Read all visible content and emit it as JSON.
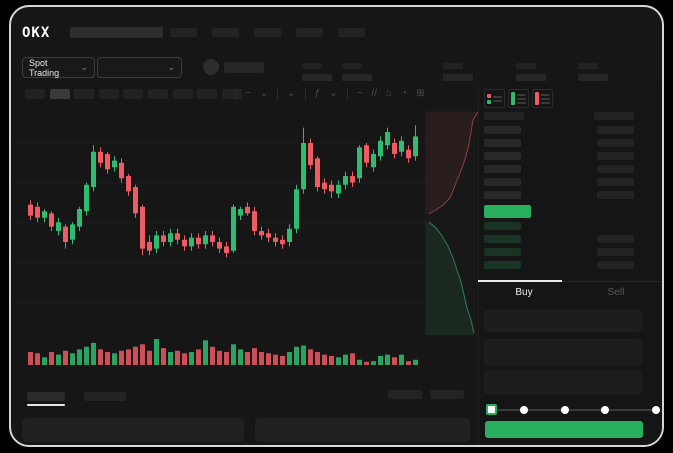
{
  "colors": {
    "green": "#2EBD70",
    "red": "#EF5B62",
    "accent_green": "#27AE5E",
    "buy_depth_tint": "rgba(46,189,112,0.18)",
    "grid": "#1c1c1c"
  },
  "header": {
    "logo": "OKX",
    "nav_placeholder_count": 5
  },
  "icons": {
    "chevron_down": "⌄"
  },
  "market_bar": {
    "market_selector_label": "Spot Trading",
    "stat_block_count": 5
  },
  "toolbar": {
    "timeframe_count": 9,
    "active_timeframe_index": 1,
    "tools": [
      {
        "type": "sep"
      },
      {
        "type": "icon",
        "name": "candle-style-icon",
        "glyph": "~"
      },
      {
        "type": "icon",
        "name": "chevron-down-icon",
        "glyph": "⌄"
      },
      {
        "type": "sep"
      },
      {
        "type": "icon",
        "name": "interval-menu-icon",
        "glyph": "⌄"
      },
      {
        "type": "sep"
      },
      {
        "type": "icon",
        "name": "indicators-icon",
        "glyph": "ƒ"
      },
      {
        "type": "icon",
        "name": "chevron-down-icon",
        "glyph": "⌄"
      },
      {
        "type": "sep"
      },
      {
        "type": "icon",
        "name": "line-tool-icon",
        "glyph": "~"
      },
      {
        "type": "icon",
        "name": "draw-tool-icon",
        "glyph": "//"
      },
      {
        "type": "icon",
        "name": "snapshot-icon",
        "glyph": "⌂"
      },
      {
        "type": "icon",
        "name": "history-icon",
        "glyph": "◔"
      },
      {
        "type": "icon",
        "name": "fullscreen-icon",
        "glyph": "⊞"
      }
    ]
  },
  "order_book": {
    "view_modes": [
      "combined-book",
      "bids-only",
      "asks-only"
    ],
    "sell_level_count": 6,
    "buy_level_count": 4,
    "buy_rows_with_amount": [
      1,
      2,
      3
    ],
    "last_price_color": "#27AE5E"
  },
  "trade_panel": {
    "tabs": [
      {
        "label": "Buy",
        "active": true
      },
      {
        "label": "Sell",
        "active": false
      }
    ],
    "field_count": 3,
    "slider_stop_count": 5,
    "active_slider_stop": 0
  },
  "chart_data": [
    {
      "type": "candlestick",
      "title": "",
      "xlabel": "",
      "ylabel": "",
      "ylim": [
        0,
        100
      ],
      "grid": "horizontal",
      "candles_ohlc": [
        [
          57,
          59,
          50,
          52
        ],
        [
          56,
          58,
          49,
          51
        ],
        [
          51,
          55,
          49,
          54
        ],
        [
          53,
          54,
          45,
          47
        ],
        [
          45,
          51,
          43,
          49
        ],
        [
          47,
          48,
          37,
          40
        ],
        [
          41,
          49,
          39,
          48
        ],
        [
          47,
          56,
          45,
          55
        ],
        [
          54,
          67,
          52,
          66
        ],
        [
          65,
          84,
          63,
          81
        ],
        [
          81,
          83,
          74,
          76
        ],
        [
          80,
          81,
          71,
          73
        ],
        [
          74,
          79,
          72,
          77
        ],
        [
          76,
          78,
          67,
          69
        ],
        [
          70,
          71,
          61,
          63
        ],
        [
          65,
          66,
          51,
          53
        ],
        [
          56,
          57,
          34,
          37
        ],
        [
          40,
          43,
          34,
          36
        ],
        [
          37,
          45,
          35,
          43
        ],
        [
          43,
          45,
          38,
          40
        ],
        [
          40,
          46,
          38,
          44
        ],
        [
          44,
          46,
          39,
          41
        ],
        [
          41,
          43,
          36,
          38
        ],
        [
          38,
          44,
          36,
          42
        ],
        [
          42,
          44,
          37,
          39
        ],
        [
          39,
          45,
          37,
          43
        ],
        [
          43,
          45,
          38,
          40
        ],
        [
          40,
          42,
          35,
          37
        ],
        [
          38,
          40,
          33,
          35
        ],
        [
          36,
          57,
          35,
          56
        ],
        [
          52,
          56,
          50,
          55
        ],
        [
          56,
          58,
          52,
          53
        ],
        [
          54,
          56,
          43,
          45
        ],
        [
          45,
          47,
          41,
          43
        ],
        [
          44,
          46,
          40,
          42
        ],
        [
          42,
          44,
          38,
          40
        ],
        [
          41,
          43,
          37,
          39
        ],
        [
          40,
          48,
          38,
          46
        ],
        [
          46,
          66,
          44,
          64
        ],
        [
          64,
          92,
          62,
          85
        ],
        [
          85,
          87,
          73,
          75
        ],
        [
          78,
          79,
          63,
          65
        ],
        [
          67,
          69,
          62,
          64
        ],
        [
          66,
          68,
          60,
          63
        ],
        [
          62,
          68,
          60,
          66
        ],
        [
          66,
          72,
          64,
          70
        ],
        [
          70,
          72,
          65,
          67
        ],
        [
          69,
          84,
          67,
          83
        ],
        [
          84,
          85,
          74,
          76
        ],
        [
          74,
          82,
          72,
          80
        ],
        [
          79,
          88,
          77,
          86
        ],
        [
          84,
          92,
          82,
          90
        ],
        [
          85,
          87,
          78,
          80
        ],
        [
          81,
          88,
          79,
          86
        ],
        [
          82,
          84,
          76,
          78
        ],
        [
          79,
          93,
          77,
          88
        ]
      ],
      "volume": [
        0.5,
        0.45,
        0.3,
        0.5,
        0.4,
        0.55,
        0.45,
        0.6,
        0.7,
        0.85,
        0.6,
        0.5,
        0.45,
        0.55,
        0.6,
        0.7,
        0.8,
        0.55,
        1.0,
        0.65,
        0.5,
        0.55,
        0.45,
        0.5,
        0.6,
        0.95,
        0.7,
        0.55,
        0.5,
        0.8,
        0.6,
        0.5,
        0.65,
        0.5,
        0.45,
        0.4,
        0.35,
        0.5,
        0.7,
        0.75,
        0.6,
        0.5,
        0.4,
        0.35,
        0.3,
        0.4,
        0.45,
        0.2,
        0.12,
        0.15,
        0.35,
        0.4,
        0.3,
        0.4,
        0.15,
        0.2
      ]
    },
    {
      "type": "area",
      "title": "depth",
      "sell_curve": [
        [
          52,
          2
        ],
        [
          47,
          10
        ],
        [
          45,
          22
        ],
        [
          43,
          34
        ],
        [
          40,
          46
        ],
        [
          36,
          58
        ],
        [
          32,
          68
        ],
        [
          28,
          78
        ],
        [
          24,
          88
        ],
        [
          16,
          96
        ],
        [
          3,
          104
        ]
      ],
      "buy_curve": [
        [
          3,
          112
        ],
        [
          10,
          118
        ],
        [
          16,
          126
        ],
        [
          22,
          136
        ],
        [
          27,
          148
        ],
        [
          31,
          160
        ],
        [
          35,
          172
        ],
        [
          38,
          185
        ],
        [
          41,
          198
        ],
        [
          45,
          210
        ],
        [
          48,
          223
        ]
      ]
    }
  ]
}
